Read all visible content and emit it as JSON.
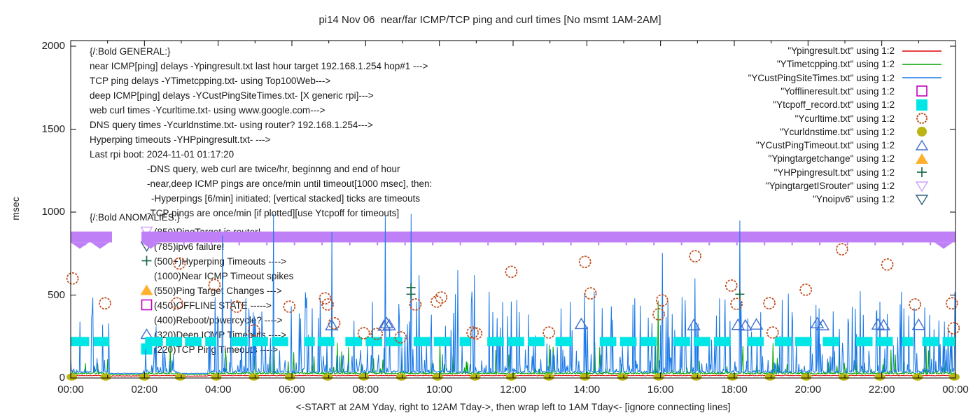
{
  "chart_data": {
    "type": "line",
    "title": "pi14 Nov 06  near/far ICMP/TCP ping and curl times [No msmt 1AM-2AM]",
    "xlabel": "<-START at 2AM Yday, right to 12AM Tday->, then wrap left to 1AM Tday<- [ignore connecting lines]",
    "ylabel": "msec",
    "xlim_hours": [
      0,
      24
    ],
    "ylim": [
      0,
      2000
    ],
    "grid": false,
    "x_ticks": [
      {
        "h": 0,
        "label": "00:00"
      },
      {
        "h": 2,
        "label": "02:00"
      },
      {
        "h": 4,
        "label": "04:00"
      },
      {
        "h": 6,
        "label": "06:00"
      },
      {
        "h": 8,
        "label": "08:00"
      },
      {
        "h": 10,
        "label": "10:00"
      },
      {
        "h": 12,
        "label": "12:00"
      },
      {
        "h": 14,
        "label": "14:00"
      },
      {
        "h": 16,
        "label": "16:00"
      },
      {
        "h": 18,
        "label": "18:00"
      },
      {
        "h": 20,
        "label": "20:00"
      },
      {
        "h": 22,
        "label": "22:00"
      },
      {
        "h": 24,
        "label": "00:00"
      }
    ],
    "y_ticks": [
      {
        "v": 0,
        "label": "0"
      },
      {
        "v": 500,
        "label": "500"
      },
      {
        "v": 1000,
        "label": "1000"
      },
      {
        "v": 1500,
        "label": "1500"
      },
      {
        "v": 2000,
        "label": "2000"
      }
    ],
    "quiet_ranges_hours": [
      [
        1.05,
        1.95
      ],
      [
        2.95,
        3.72
      ]
    ],
    "line_series": [
      {
        "name": "Ypingresult",
        "color": "#e00000",
        "baseline": 13,
        "noise": 4,
        "spike_prob": 0,
        "spike_max": 0,
        "spikes": []
      },
      {
        "name": "YTimetcpping",
        "color": "#00a400",
        "baseline": 24,
        "noise": 10,
        "spike_prob": 0.07,
        "spike_max": 170,
        "spikes": [
          [
            5.52,
            210
          ],
          [
            12.98,
            200
          ],
          [
            15.93,
            465
          ],
          [
            19.05,
            210
          ],
          [
            21.3,
            180
          ],
          [
            23.2,
            230
          ]
        ]
      },
      {
        "name": "YCustPingSiteTimes",
        "color": "#1777e8",
        "baseline": 32,
        "noise": 14,
        "spike_prob": 0.26,
        "spike_max": 470,
        "spikes": [
          [
            2.32,
            310
          ],
          [
            4.12,
            860
          ],
          [
            4.75,
            480
          ],
          [
            5.5,
            990
          ],
          [
            6.55,
            420
          ],
          [
            7.08,
            880
          ],
          [
            8.53,
            980
          ],
          [
            9.23,
            990
          ],
          [
            9.45,
            620
          ],
          [
            10.5,
            650
          ],
          [
            10.95,
            620
          ],
          [
            11.35,
            520
          ],
          [
            12.1,
            470
          ],
          [
            13.3,
            420
          ],
          [
            14.2,
            520
          ],
          [
            15.3,
            480
          ],
          [
            16.05,
            755
          ],
          [
            16.94,
            600
          ],
          [
            17.6,
            480
          ],
          [
            18.15,
            950
          ],
          [
            19.3,
            470
          ],
          [
            20.3,
            420
          ],
          [
            21.5,
            380
          ],
          [
            21.95,
            460
          ],
          [
            22.6,
            420
          ],
          [
            23.3,
            380
          ],
          [
            23.7,
            340
          ]
        ]
      }
    ],
    "scatter_series": [
      {
        "name": "YpingtargetISrouter",
        "style": "band-down-triangles",
        "color": "#bf80f7",
        "value": 850,
        "band_half_msec": 33,
        "segments": [
          [
            0.0,
            1.12
          ],
          [
            1.92,
            24.0
          ]
        ],
        "notch_interval_hours": 0.75
      },
      {
        "name": "Ytcpoff_record",
        "style": "square-band",
        "color": "#00e5e5",
        "value": 220,
        "segments": [
          [
            0.0,
            0.5
          ],
          [
            0.62,
            1.05
          ],
          [
            2.02,
            2.5
          ],
          [
            2.58,
            3.02
          ],
          [
            3.1,
            3.55
          ],
          [
            3.65,
            3.95
          ],
          [
            4.35,
            4.8
          ],
          [
            4.92,
            5.35
          ],
          [
            5.45,
            5.9
          ],
          [
            6.33,
            6.62
          ],
          [
            6.7,
            7.15
          ],
          [
            7.45,
            7.9
          ],
          [
            8.0,
            8.45
          ],
          [
            8.55,
            9.0
          ],
          [
            9.3,
            9.75
          ],
          [
            9.85,
            10.3
          ],
          [
            10.55,
            10.85
          ],
          [
            11.3,
            11.75
          ],
          [
            11.85,
            12.3
          ],
          [
            12.4,
            12.85
          ],
          [
            13.15,
            13.6
          ],
          [
            14.35,
            14.8
          ],
          [
            14.9,
            15.35
          ],
          [
            15.45,
            15.9
          ],
          [
            16.35,
            16.8
          ],
          [
            16.9,
            17.35
          ],
          [
            17.45,
            17.9
          ],
          [
            18.35,
            18.8
          ],
          [
            19.1,
            19.55
          ],
          [
            19.65,
            20.1
          ],
          [
            20.4,
            20.85
          ],
          [
            21.3,
            21.75
          ],
          [
            21.85,
            22.3
          ],
          [
            22.55,
            22.85
          ],
          [
            23.1,
            23.55
          ],
          [
            23.65,
            24.0
          ]
        ]
      },
      {
        "name": "Ycurltime",
        "style": "circle-open",
        "color": "#bf4a1a",
        "points": [
          [
            0.05,
            600
          ],
          [
            0.93,
            450
          ],
          [
            2.88,
            450
          ],
          [
            2.95,
            690
          ],
          [
            3.9,
            560
          ],
          [
            4.5,
            430
          ],
          [
            4.97,
            287
          ],
          [
            5.93,
            430
          ],
          [
            6.9,
            480
          ],
          [
            6.97,
            443
          ],
          [
            7.15,
            330
          ],
          [
            7.95,
            270
          ],
          [
            8.3,
            266
          ],
          [
            8.95,
            245
          ],
          [
            9.35,
            443
          ],
          [
            9.93,
            460
          ],
          [
            10.05,
            485
          ],
          [
            10.9,
            274
          ],
          [
            11.0,
            268
          ],
          [
            11.95,
            640
          ],
          [
            12.97,
            274
          ],
          [
            13.95,
            700
          ],
          [
            14.1,
            510
          ],
          [
            15.95,
            384
          ],
          [
            16.04,
            468
          ],
          [
            16.94,
            734
          ],
          [
            17.92,
            557
          ],
          [
            18.06,
            447
          ],
          [
            18.95,
            451
          ],
          [
            19.04,
            274
          ],
          [
            19.94,
            532
          ],
          [
            20.92,
            776
          ],
          [
            22.15,
            684
          ],
          [
            22.9,
            443
          ],
          [
            23.9,
            450
          ],
          [
            23.95,
            300
          ]
        ]
      },
      {
        "name": "Ycurldnstime",
        "style": "dot",
        "color": "#bab513",
        "value": 6,
        "hours": [
          0.03,
          0.95,
          2.0,
          2.97,
          3.95,
          4.97,
          5.95,
          6.97,
          7.95,
          8.97,
          9.95,
          10.97,
          11.95,
          12.97,
          13.95,
          14.97,
          15.95,
          16.97,
          17.95,
          18.97,
          19.95,
          20.97,
          21.95,
          22.97,
          23.97
        ]
      },
      {
        "name": "YCustPingTimeout",
        "style": "triangle-open",
        "color": "#4070d0",
        "points": [
          [
            7.08,
            318
          ],
          [
            8.5,
            315
          ],
          [
            8.57,
            330
          ],
          [
            8.64,
            318
          ],
          [
            13.85,
            325
          ],
          [
            16.9,
            318
          ],
          [
            18.1,
            320
          ],
          [
            18.3,
            316
          ],
          [
            18.6,
            322
          ],
          [
            20.25,
            330
          ],
          [
            20.4,
            318
          ],
          [
            21.9,
            322
          ],
          [
            22.05,
            318
          ],
          [
            23.0,
            320
          ]
        ]
      },
      {
        "name": "YHPpingresult",
        "style": "plus",
        "color": "#1a6b4a",
        "points": [
          [
            9.23,
            505
          ],
          [
            9.23,
            545
          ],
          [
            18.15,
            505
          ]
        ]
      },
      {
        "name": "Ynoipv6",
        "style": "triangle-down-open",
        "color": "#35607a",
        "points": []
      }
    ]
  },
  "legend": {
    "items": [
      {
        "label": "\"Ypingresult.txt\" using 1:2",
        "style": "line",
        "color": "#e00000"
      },
      {
        "label": "\"YTimetcpping.txt\" using 1:2",
        "style": "line",
        "color": "#00a400"
      },
      {
        "label": "\"YCustPingSiteTimes.txt\" using 1:2",
        "style": "line",
        "color": "#1777e8"
      },
      {
        "label": "\"Yofflineresult.txt\" using 1:2",
        "style": "square-open",
        "color": "#bf00bf"
      },
      {
        "label": "\"Ytcpoff_record.txt\" using 1:2",
        "style": "square-filled",
        "color": "#00e5e5"
      },
      {
        "label": "\"Ycurltime.txt\" using 1:2",
        "style": "circle-open",
        "color": "#bf4a1a"
      },
      {
        "label": "\"Ycurldnstime.txt\" using 1:2",
        "style": "circle-filled",
        "color": "#bab513"
      },
      {
        "label": "\"YCustPingTimeout.txt\" using 1:2",
        "style": "triangle-open",
        "color": "#4070d0"
      },
      {
        "label": "\"Ypingtargetchange\" using 1:2",
        "style": "triangle-filled",
        "color": "#ffb02e"
      },
      {
        "label": "\"YHPpingresult.txt\" using 1:2",
        "style": "plus",
        "color": "#1a6b4a"
      },
      {
        "label": "\"YpingtargetISrouter\" using 1:2",
        "style": "triangle-down-open",
        "color": "#cfa3f7"
      },
      {
        "label": "\"Ynoipv6\" using 1:2",
        "style": "triangle-down-open",
        "color": "#35607a"
      }
    ]
  },
  "annotations": {
    "general": {
      "rows": [
        {
          "text": "{/:Bold GENERAL:}",
          "indent": 0
        },
        {
          "text": "near ICMP[ping] delays -Ypingresult.txt last hour target 192.168.1.254 hop#1 --->",
          "indent": 0
        },
        {
          "text": "TCP ping delays -YTimetcpping.txt- using Top100Web--->",
          "indent": 0
        },
        {
          "text": "deep ICMP[ping] delays -YCustPingSiteTimes.txt- [X generic rpi]--->",
          "indent": 0
        },
        {
          "text": "web curl times -Ycurltime.txt- using www.google.com--->",
          "indent": 0
        },
        {
          "text": "DNS query times -Ycurldnstime.txt- using router? 192.168.1.254--->",
          "indent": 0
        },
        {
          "text": "Hyperping timeouts -YHPpingresult.txt- --->",
          "indent": 0
        },
        {
          "text": "Last rpi boot: 2024-11-01 01:17:20",
          "indent": 0
        },
        {
          "text": "-DNS query, web curl are twice/hr, beginnng and end of hour",
          "indent": 1
        },
        {
          "text": "-near,deep ICMP pings are once/min until timeout[1000 msec], then:",
          "indent": 1
        },
        {
          "text": "-Hyperpings [6/min] initiated; [vertical stacked] ticks are timeouts",
          "indent": 2
        },
        {
          "text": "-TCP pings are once/min [if plotted][use Ytcpoff for timeouts]",
          "indent": 1
        }
      ]
    },
    "anomalies": {
      "rows": [
        {
          "text": "{/:Bold ANOMALIES:}",
          "marker": null,
          "color": null
        },
        {
          "text": "(850)PingTarget is router!",
          "marker": "triangle-down-open",
          "color": "#cfa3f7"
        },
        {
          "text": "(785)ipv6 failure!",
          "marker": "triangle-down-open",
          "color": "#35607a"
        },
        {
          "text": "(500+)Hyperping Timeouts ---->",
          "marker": "plus",
          "color": "#1a6b4a"
        },
        {
          "text": "(1000)Near ICMP Timeout spikes",
          "marker": null,
          "color": null
        },
        {
          "text": "(550)Ping Target Changes --->",
          "marker": "triangle-filled",
          "color": "#ffb02e"
        },
        {
          "text": "(450)OFFLINE STATE ----->",
          "marker": "square-open",
          "color": "#bf00bf"
        },
        {
          "text": "(400)Reboot/powercycle? ---->",
          "marker": null,
          "color": null
        },
        {
          "text": "(320)Deep ICMP Timeouts ---->",
          "marker": "triangle-open",
          "color": "#4070d0"
        },
        {
          "text": "(220)TCP Ping Timeouts ---->",
          "marker": "square-filled",
          "color": "#00e5e5"
        }
      ]
    }
  }
}
